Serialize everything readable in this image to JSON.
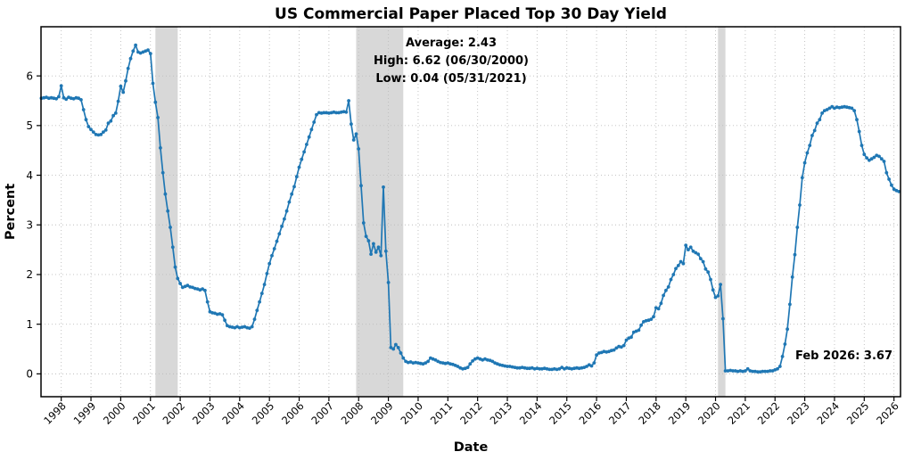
{
  "chart_data": {
    "type": "line",
    "title": "US Commercial Paper Placed Top 30 Day Yield",
    "xlabel": "Date",
    "ylabel": "Percent",
    "x_tick_labels": [
      "1998",
      "1999",
      "2000",
      "2001",
      "2002",
      "2003",
      "2004",
      "2005",
      "2006",
      "2007",
      "2008",
      "2009",
      "2010",
      "2011",
      "2012",
      "2013",
      "2014",
      "2015",
      "2016",
      "2017",
      "2018",
      "2019",
      "2020",
      "2021",
      "2022",
      "2023",
      "2024",
      "2025",
      "2026"
    ],
    "y_ticks": [
      0,
      1,
      2,
      3,
      4,
      5,
      6
    ],
    "ylim": [
      -0.46,
      6.99
    ],
    "x_domain": [
      1997.32,
      2026.22
    ],
    "grid": true,
    "legend": "none",
    "colors": {
      "line": "#1f77b4",
      "recession_band": "#d8d8d8",
      "grid": "#bdbdbd",
      "spine": "#000000",
      "background": "#ffffff"
    },
    "annotations": {
      "stats": [
        "Average: 2.43",
        "High: 6.62 (06/30/2000)",
        "Low: 0.04 (05/31/2021)"
      ],
      "latest": "Feb 2026: 3.67"
    },
    "recession_bands": [
      [
        "2001-03",
        "2001-11"
      ],
      [
        "2007-12",
        "2009-06"
      ],
      [
        "2020-02",
        "2020-04"
      ]
    ],
    "series": [
      {
        "name": "US Commercial Paper Placed Top 30 Day Yield",
        "frequency": "monthly",
        "start": "1997-04",
        "end": "2026-02",
        "values": [
          5.55,
          5.56,
          5.57,
          5.55,
          5.56,
          5.55,
          5.54,
          5.58,
          5.8,
          5.56,
          5.53,
          5.57,
          5.55,
          5.54,
          5.56,
          5.55,
          5.52,
          5.32,
          5.12,
          4.98,
          4.92,
          4.87,
          4.82,
          4.81,
          4.82,
          4.87,
          4.91,
          5.05,
          5.09,
          5.2,
          5.25,
          5.49,
          5.79,
          5.67,
          5.9,
          6.15,
          6.35,
          6.5,
          6.62,
          6.48,
          6.46,
          6.48,
          6.5,
          6.52,
          6.45,
          5.85,
          5.47,
          5.16,
          4.55,
          4.05,
          3.62,
          3.28,
          2.95,
          2.55,
          2.15,
          1.92,
          1.82,
          1.74,
          1.76,
          1.78,
          1.75,
          1.74,
          1.72,
          1.71,
          1.69,
          1.71,
          1.68,
          1.45,
          1.25,
          1.23,
          1.22,
          1.2,
          1.21,
          1.19,
          1.08,
          0.97,
          0.95,
          0.94,
          0.93,
          0.95,
          0.93,
          0.94,
          0.95,
          0.93,
          0.92,
          0.95,
          1.1,
          1.28,
          1.45,
          1.62,
          1.8,
          2.02,
          2.22,
          2.38,
          2.52,
          2.67,
          2.82,
          2.97,
          3.12,
          3.28,
          3.46,
          3.62,
          3.77,
          3.97,
          4.16,
          4.32,
          4.47,
          4.62,
          4.77,
          4.92,
          5.07,
          5.22,
          5.26,
          5.25,
          5.26,
          5.26,
          5.25,
          5.26,
          5.27,
          5.26,
          5.26,
          5.27,
          5.28,
          5.27,
          5.5,
          5.03,
          4.71,
          4.83,
          4.53,
          3.79,
          3.04,
          2.77,
          2.68,
          2.41,
          2.62,
          2.45,
          2.55,
          2.38,
          3.76,
          2.47,
          1.84,
          0.53,
          0.5,
          0.59,
          0.53,
          0.42,
          0.32,
          0.25,
          0.23,
          0.24,
          0.22,
          0.23,
          0.22,
          0.21,
          0.2,
          0.22,
          0.25,
          0.32,
          0.3,
          0.28,
          0.25,
          0.23,
          0.22,
          0.21,
          0.22,
          0.2,
          0.19,
          0.17,
          0.15,
          0.12,
          0.1,
          0.11,
          0.13,
          0.2,
          0.26,
          0.3,
          0.32,
          0.3,
          0.28,
          0.3,
          0.28,
          0.27,
          0.25,
          0.22,
          0.2,
          0.18,
          0.17,
          0.16,
          0.15,
          0.15,
          0.14,
          0.13,
          0.12,
          0.12,
          0.13,
          0.12,
          0.11,
          0.11,
          0.12,
          0.1,
          0.11,
          0.1,
          0.1,
          0.11,
          0.1,
          0.09,
          0.09,
          0.1,
          0.09,
          0.1,
          0.13,
          0.1,
          0.12,
          0.11,
          0.1,
          0.11,
          0.12,
          0.11,
          0.12,
          0.13,
          0.15,
          0.18,
          0.16,
          0.22,
          0.38,
          0.42,
          0.43,
          0.45,
          0.44,
          0.45,
          0.47,
          0.48,
          0.52,
          0.55,
          0.54,
          0.57,
          0.68,
          0.72,
          0.74,
          0.84,
          0.86,
          0.88,
          0.98,
          1.05,
          1.07,
          1.08,
          1.1,
          1.15,
          1.33,
          1.31,
          1.42,
          1.58,
          1.68,
          1.75,
          1.9,
          2.0,
          2.12,
          2.18,
          2.26,
          2.22,
          2.59,
          2.5,
          2.55,
          2.47,
          2.44,
          2.41,
          2.32,
          2.26,
          2.11,
          2.05,
          1.9,
          1.69,
          1.54,
          1.57,
          1.8,
          1.11,
          0.06,
          0.06,
          0.07,
          0.06,
          0.06,
          0.05,
          0.06,
          0.05,
          0.06,
          0.1,
          0.06,
          0.05,
          0.05,
          0.04,
          0.04,
          0.05,
          0.05,
          0.05,
          0.06,
          0.06,
          0.08,
          0.1,
          0.15,
          0.35,
          0.6,
          0.9,
          1.4,
          1.95,
          2.4,
          2.95,
          3.4,
          3.95,
          4.25,
          4.45,
          4.6,
          4.8,
          4.9,
          5.05,
          5.12,
          5.25,
          5.3,
          5.32,
          5.35,
          5.38,
          5.35,
          5.37,
          5.36,
          5.37,
          5.38,
          5.37,
          5.36,
          5.35,
          5.3,
          5.12,
          4.88,
          4.6,
          4.42,
          4.35,
          4.3,
          4.33,
          4.36,
          4.4,
          4.38,
          4.33,
          4.28,
          4.05,
          3.92,
          3.8,
          3.72,
          3.69,
          3.67
        ]
      }
    ]
  }
}
